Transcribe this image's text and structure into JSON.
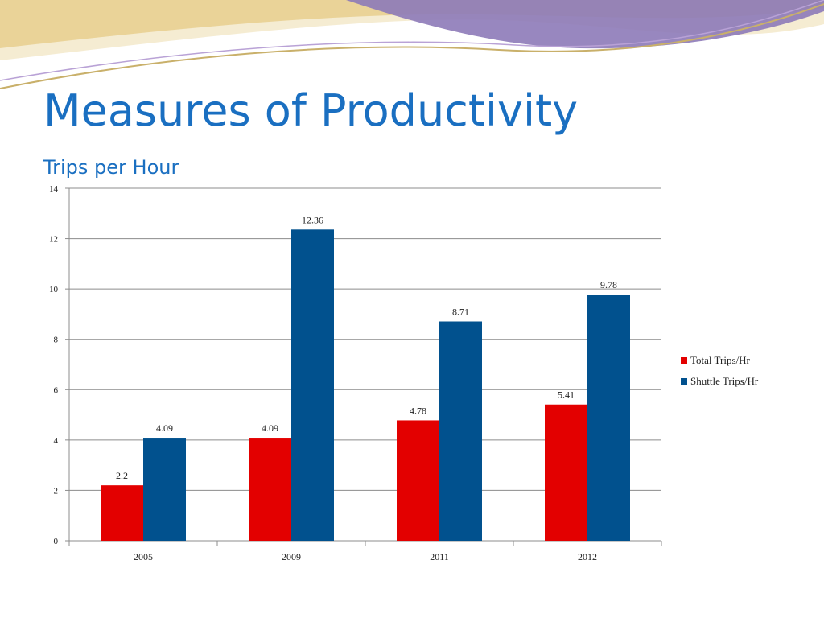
{
  "slide": {
    "title": "Measures of Productivity",
    "subtitle": "Trips per Hour"
  },
  "colors": {
    "title": "#1a6fc1",
    "decor_purple": "#8d7ab8",
    "decor_gold": "#e8cf8e",
    "decor_cream": "#f5ecd2"
  },
  "chart_data": {
    "type": "bar",
    "title": "",
    "xlabel": "",
    "ylabel": "",
    "categories": [
      "2005",
      "2009",
      "2011",
      "2012"
    ],
    "series": [
      {
        "name": "Total Trips/Hr",
        "color": "#e30000",
        "values": [
          2.2,
          4.09,
          4.78,
          5.41
        ],
        "labels": [
          "2.2",
          "4.09",
          "4.78",
          "5.41"
        ]
      },
      {
        "name": "Shuttle Trips/Hr",
        "color": "#01518e",
        "values": [
          4.09,
          12.36,
          8.71,
          9.78
        ],
        "labels": [
          "4.09",
          "12.36",
          "8.71",
          "9.78"
        ]
      }
    ],
    "ylim": [
      0,
      14
    ],
    "yticks": [
      "0",
      "2",
      "4",
      "6",
      "8",
      "10",
      "12",
      "14"
    ],
    "grid": true,
    "legend": "right"
  }
}
